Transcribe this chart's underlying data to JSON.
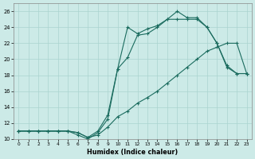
{
  "xlabel": "Humidex (Indice chaleur)",
  "bg_color": "#cceae7",
  "grid_color": "#aad4d0",
  "line_color": "#1a6b5e",
  "xlim": [
    -0.5,
    23.5
  ],
  "ylim": [
    10,
    27
  ],
  "xticks": [
    0,
    1,
    2,
    3,
    4,
    5,
    6,
    7,
    8,
    9,
    10,
    11,
    12,
    13,
    14,
    15,
    16,
    17,
    18,
    19,
    20,
    21,
    22,
    23
  ],
  "yticks": [
    10,
    12,
    14,
    16,
    18,
    20,
    22,
    24,
    26
  ],
  "line1_x": [
    0,
    1,
    2,
    3,
    4,
    5,
    6,
    7,
    8,
    9,
    10,
    11,
    12,
    13,
    14,
    15,
    16,
    17,
    18,
    19,
    20,
    21,
    22,
    23
  ],
  "line1_y": [
    11,
    11,
    11,
    11,
    11,
    11,
    10.5,
    10,
    10.8,
    12.5,
    18.8,
    24,
    23.2,
    23.8,
    24.2,
    25,
    26,
    25.2,
    25.2,
    24,
    22,
    19.2,
    18.2,
    18.2
  ],
  "line2_x": [
    0,
    1,
    2,
    3,
    4,
    5,
    6,
    7,
    8,
    9,
    10,
    11,
    12,
    13,
    14,
    15,
    16,
    17,
    18,
    19,
    20,
    21,
    22,
    23
  ],
  "line2_y": [
    11,
    11,
    11,
    11,
    11,
    11,
    10.8,
    10.2,
    11,
    13,
    18.8,
    20.2,
    23,
    23.2,
    24,
    25,
    25,
    25,
    25,
    24,
    22,
    19,
    18.2,
    18.2
  ],
  "line3_x": [
    0,
    1,
    2,
    3,
    4,
    5,
    6,
    7,
    8,
    9,
    10,
    11,
    12,
    13,
    14,
    15,
    16,
    17,
    18,
    19,
    20,
    21,
    22,
    23
  ],
  "line3_y": [
    11,
    11,
    11,
    11,
    11,
    11,
    10.8,
    10.2,
    10.5,
    11.5,
    12.8,
    13.5,
    14.5,
    15.2,
    16,
    17,
    18,
    19,
    20,
    21,
    21.5,
    22,
    22,
    18.2
  ]
}
